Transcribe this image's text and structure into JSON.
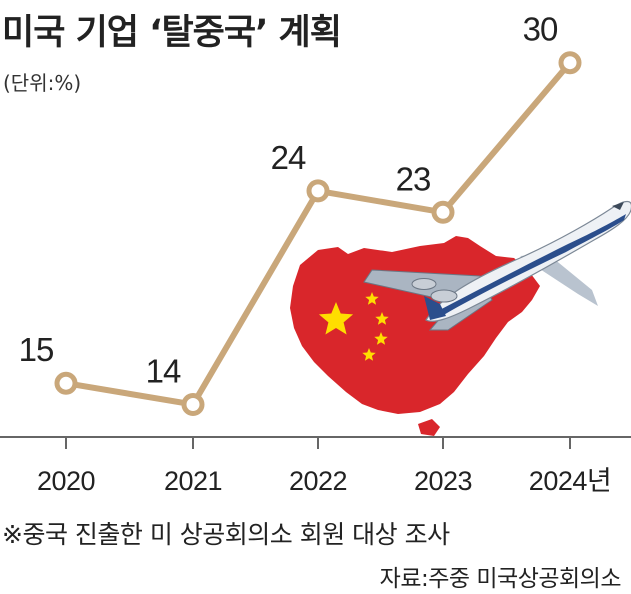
{
  "title": "미국 기업 ‘탈중국’ 계획",
  "unit": "(단위:%)",
  "colors": {
    "line": "#c9a77a",
    "point_fill": "#ffffff",
    "axis": "#666666",
    "text": "#222222"
  },
  "chart_data": {
    "type": "line",
    "x": [
      "2020",
      "2021",
      "2022",
      "2023",
      "2024년"
    ],
    "values": [
      15,
      14,
      24,
      23,
      30
    ],
    "data_labels": [
      "15",
      "14",
      "24",
      "23",
      "30"
    ],
    "xlabel": "",
    "ylabel": "",
    "ylim": [
      10,
      32
    ],
    "grid": false,
    "legend": "none"
  },
  "illustration": {
    "subject": "China map with airplane",
    "colors": [
      "#d9262b",
      "#ffde00",
      "#ffffff",
      "#2b4e8c"
    ]
  },
  "footnote": "※중국 진출한 미 상공회의소 회원 대상 조사",
  "source": "자료:주중 미국상공회의소"
}
